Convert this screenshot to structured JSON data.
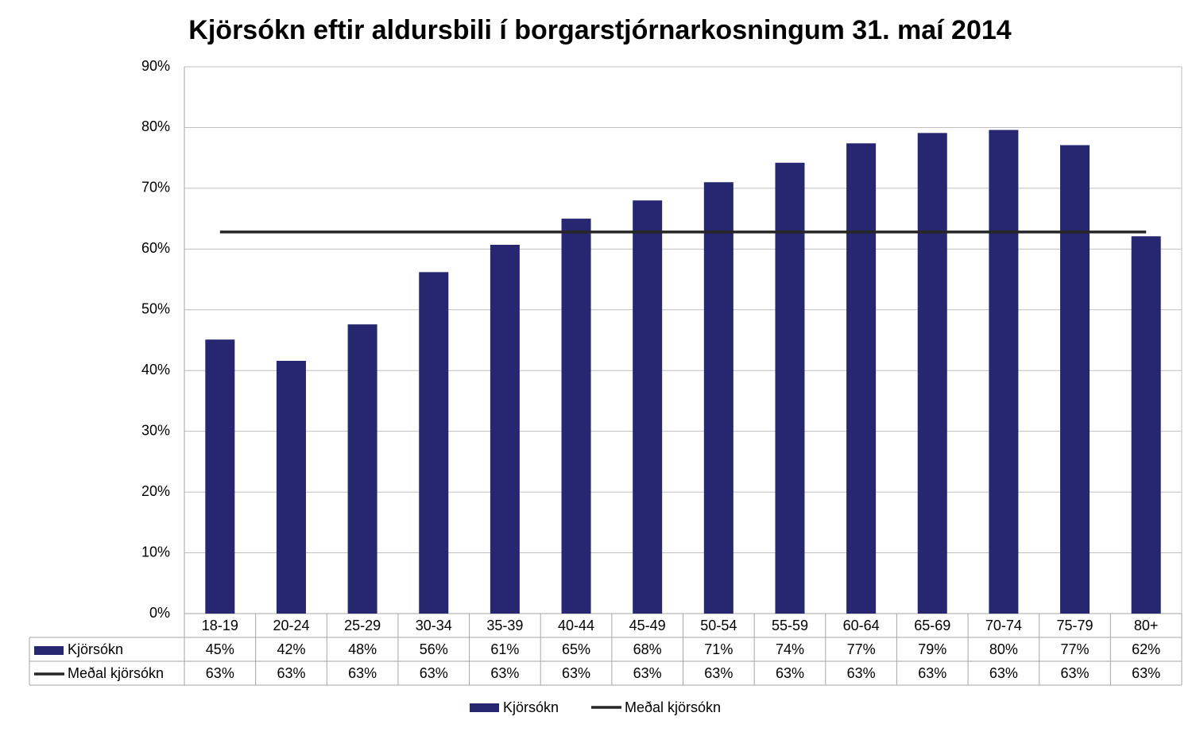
{
  "chart_data": {
    "type": "bar",
    "title": "Kjörsókn eftir aldursbili í borgarstjórnarkosningum 31. maí 2014",
    "categories": [
      "18-19",
      "20-24",
      "25-29",
      "30-34",
      "35-39",
      "40-44",
      "45-49",
      "50-54",
      "55-59",
      "60-64",
      "65-69",
      "70-74",
      "75-79",
      "80+"
    ],
    "series": [
      {
        "name": "Kjörsókn",
        "type": "bar",
        "color": "#262770",
        "values": [
          45.1,
          41.6,
          47.6,
          56.2,
          60.7,
          65.0,
          68.0,
          71.0,
          74.2,
          77.4,
          79.1,
          79.6,
          77.1,
          62.1
        ],
        "value_labels": [
          "45%",
          "42%",
          "48%",
          "56%",
          "61%",
          "65%",
          "68%",
          "71%",
          "74%",
          "77%",
          "79%",
          "80%",
          "77%",
          "62%"
        ]
      },
      {
        "name": "Meðal kjörsókn",
        "type": "line",
        "color": "#262626",
        "values": [
          62.8,
          62.8,
          62.8,
          62.8,
          62.8,
          62.8,
          62.8,
          62.8,
          62.8,
          62.8,
          62.8,
          62.8,
          62.8,
          62.8
        ],
        "value_labels": [
          "63%",
          "63%",
          "63%",
          "63%",
          "63%",
          "63%",
          "63%",
          "63%",
          "63%",
          "63%",
          "63%",
          "63%",
          "63%",
          "63%"
        ]
      }
    ],
    "ylim": [
      0,
      90
    ],
    "yticks": [
      {
        "value": 0,
        "label": "0%"
      },
      {
        "value": 10,
        "label": "10%"
      },
      {
        "value": 20,
        "label": "20%"
      },
      {
        "value": 30,
        "label": "30%"
      },
      {
        "value": 40,
        "label": "40%"
      },
      {
        "value": 50,
        "label": "50%"
      },
      {
        "value": 60,
        "label": "60%"
      },
      {
        "value": 70,
        "label": "70%"
      },
      {
        "value": 80,
        "label": "80%"
      },
      {
        "value": 90,
        "label": "90%"
      }
    ],
    "grid": true
  }
}
